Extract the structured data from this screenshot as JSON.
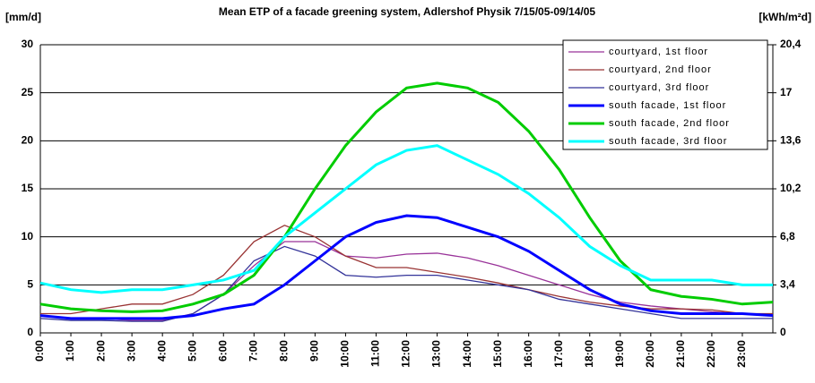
{
  "chart_data": {
    "type": "line",
    "title": "Mean ETP of a facade greening system, Adlershof Physik 7/15/05-09/14/05",
    "y_label": "[mm/d]",
    "y2_label": "[kWh/m²d]",
    "x": [
      0,
      1,
      2,
      3,
      4,
      5,
      6,
      7,
      8,
      9,
      10,
      11,
      12,
      13,
      14,
      15,
      16,
      17,
      18,
      19,
      20,
      21,
      22,
      23,
      24
    ],
    "xlim": [
      0,
      24
    ],
    "xticks": [
      {
        "value": 0,
        "label": "0:00"
      },
      {
        "value": 1,
        "label": "1:00"
      },
      {
        "value": 2,
        "label": "2:00"
      },
      {
        "value": 3,
        "label": "3:00"
      },
      {
        "value": 4,
        "label": "4:00"
      },
      {
        "value": 5,
        "label": "5:00"
      },
      {
        "value": 6,
        "label": "6:00"
      },
      {
        "value": 7,
        "label": "7:00"
      },
      {
        "value": 8,
        "label": "8:00"
      },
      {
        "value": 9,
        "label": "9:00"
      },
      {
        "value": 10,
        "label": "10:00"
      },
      {
        "value": 11,
        "label": "11:00"
      },
      {
        "value": 12,
        "label": "12:00"
      },
      {
        "value": 13,
        "label": "13:00"
      },
      {
        "value": 14,
        "label": "14:00"
      },
      {
        "value": 15,
        "label": "15:00"
      },
      {
        "value": 16,
        "label": "16:00"
      },
      {
        "value": 17,
        "label": "17:00"
      },
      {
        "value": 18,
        "label": "18:00"
      },
      {
        "value": 19,
        "label": "19:00"
      },
      {
        "value": 20,
        "label": "20:00"
      },
      {
        "value": 21,
        "label": "21:00"
      },
      {
        "value": 22,
        "label": "22:00"
      },
      {
        "value": 23,
        "label": "23:00"
      }
    ],
    "ylim": [
      0,
      30
    ],
    "yticks": [
      0,
      5,
      10,
      15,
      20,
      25,
      30
    ],
    "y2lim": [
      0,
      20.4
    ],
    "y2ticks": [
      0,
      {
        "value": 3.4,
        "label": "3,4"
      },
      {
        "value": 6.8,
        "label": "6,8"
      },
      {
        "value": 10.2,
        "label": "10,2"
      },
      {
        "value": 13.6,
        "label": "13,6"
      },
      17,
      {
        "value": 20.4,
        "label": "20,4"
      }
    ],
    "grid": true,
    "legend": "upper right",
    "series": [
      {
        "name": "courtyard, 1st floor",
        "color": "#993399",
        "width": 1.3,
        "values": [
          1.8,
          1.5,
          1.5,
          1.3,
          1.3,
          2,
          4,
          7,
          9.5,
          9.5,
          8,
          7.8,
          8.2,
          8.3,
          7.8,
          7,
          6,
          5,
          4,
          3.2,
          2.8,
          2.5,
          2.2,
          2,
          1.8
        ]
      },
      {
        "name": "courtyard, 2nd floor",
        "color": "#993333",
        "width": 1.3,
        "values": [
          2,
          2,
          2.5,
          3,
          3,
          4,
          6,
          9.5,
          11.2,
          10,
          8,
          6.8,
          6.8,
          6.3,
          5.8,
          5.2,
          4.5,
          3.8,
          3.2,
          2.8,
          2.5,
          2.5,
          2.4,
          2,
          2
        ]
      },
      {
        "name": "courtyard, 3rd floor",
        "color": "#333399",
        "width": 1.3,
        "values": [
          1.5,
          1.3,
          1.3,
          1.2,
          1.2,
          2,
          4,
          7.5,
          9,
          8,
          6,
          5.8,
          6,
          6,
          5.5,
          5,
          4.5,
          3.5,
          3,
          2.5,
          2,
          1.5,
          1.5,
          1.5,
          1.5
        ]
      },
      {
        "name": "south facade, 1st floor",
        "color": "#0000ff",
        "width": 3,
        "values": [
          1.8,
          1.5,
          1.5,
          1.5,
          1.5,
          1.8,
          2.5,
          3,
          5,
          7.5,
          10,
          11.5,
          12.2,
          12,
          11,
          10,
          8.5,
          6.5,
          4.5,
          3,
          2.3,
          2,
          2,
          2,
          1.8
        ]
      },
      {
        "name": "south facade, 2nd floor",
        "color": "#00cc00",
        "width": 3,
        "values": [
          3,
          2.5,
          2.3,
          2.2,
          2.3,
          3,
          4,
          6,
          10,
          15,
          19.5,
          23,
          25.5,
          26,
          25.5,
          24,
          21,
          17,
          12,
          7.5,
          4.5,
          3.8,
          3.5,
          3,
          3.2
        ]
      },
      {
        "name": "south facade, 3rd floor",
        "color": "#00ffff",
        "width": 3,
        "values": [
          5.2,
          4.5,
          4.2,
          4.5,
          4.5,
          5,
          5.5,
          6.5,
          10,
          12.5,
          15,
          17.5,
          19,
          19.5,
          18,
          16.5,
          14.5,
          12,
          9,
          7,
          5.5,
          5.5,
          5.5,
          5,
          5
        ]
      }
    ]
  }
}
